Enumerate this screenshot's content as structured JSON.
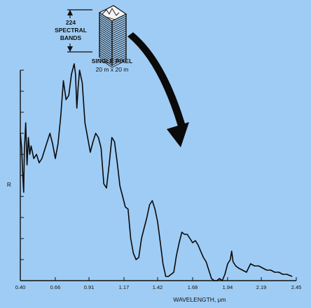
{
  "figure": {
    "bands_label_line1": "224",
    "bands_label_line2": "SPECTRAL",
    "bands_label_line3": "BANDS",
    "pixel_label_line1": "SINGLE PIXEL",
    "pixel_label_line2": "20 m x 20 m"
  },
  "colors": {
    "background": "#9fccf4",
    "ink": "#111111"
  },
  "chart_data": {
    "type": "line",
    "title": "",
    "xlabel": "WAVELENGTH, μm",
    "ylabel": "R",
    "xlim": [
      0.4,
      2.45
    ],
    "ylim": [
      0,
      1
    ],
    "x_ticks": [
      "0.40",
      "0.66",
      "0.91",
      "1.17",
      "1.42",
      "1.68",
      "1.94",
      "2.19",
      "2.45"
    ],
    "series": [
      {
        "x": [
          0.4,
          0.41,
          0.42,
          0.425,
          0.43,
          0.44,
          0.45,
          0.46,
          0.47,
          0.48,
          0.5,
          0.52,
          0.54,
          0.56,
          0.58,
          0.6,
          0.62,
          0.64,
          0.66,
          0.68,
          0.7,
          0.72,
          0.74,
          0.76,
          0.78,
          0.8,
          0.81,
          0.82,
          0.83,
          0.84,
          0.86,
          0.88,
          0.9,
          0.92,
          0.94,
          0.96,
          0.98,
          1.0,
          1.02,
          1.04,
          1.06,
          1.08,
          1.1,
          1.12,
          1.14,
          1.16,
          1.18,
          1.2,
          1.22,
          1.24,
          1.26,
          1.28,
          1.3,
          1.32,
          1.34,
          1.36,
          1.38,
          1.4,
          1.42,
          1.44,
          1.46,
          1.48,
          1.5,
          1.52,
          1.54,
          1.56,
          1.58,
          1.6,
          1.62,
          1.64,
          1.66,
          1.68,
          1.7,
          1.72,
          1.74,
          1.76,
          1.78,
          1.8,
          1.82,
          1.84,
          1.86,
          1.88,
          1.9,
          1.92,
          1.94,
          1.96,
          1.97,
          1.98,
          2.0,
          2.02,
          2.05,
          2.08,
          2.11,
          2.14,
          2.17,
          2.2,
          2.23,
          2.26,
          2.29,
          2.32,
          2.35,
          2.38,
          2.42
        ],
        "y": [
          0.7,
          0.63,
          0.48,
          0.42,
          0.62,
          0.75,
          0.55,
          0.68,
          0.6,
          0.64,
          0.58,
          0.6,
          0.56,
          0.58,
          0.62,
          0.66,
          0.7,
          0.65,
          0.58,
          0.65,
          0.78,
          0.95,
          0.86,
          0.88,
          0.98,
          1.03,
          0.98,
          0.82,
          0.92,
          1.0,
          0.94,
          0.75,
          0.68,
          0.61,
          0.66,
          0.7,
          0.68,
          0.63,
          0.46,
          0.44,
          0.55,
          0.68,
          0.66,
          0.56,
          0.45,
          0.4,
          0.35,
          0.34,
          0.2,
          0.13,
          0.1,
          0.11,
          0.2,
          0.25,
          0.3,
          0.36,
          0.38,
          0.34,
          0.28,
          0.18,
          0.08,
          0.02,
          0.02,
          0.03,
          0.04,
          0.12,
          0.18,
          0.23,
          0.22,
          0.22,
          0.2,
          0.18,
          0.19,
          0.17,
          0.14,
          0.11,
          0.09,
          0.05,
          0.01,
          0.0,
          0.0,
          0.01,
          0.0,
          0.03,
          0.08,
          0.1,
          0.14,
          0.09,
          0.07,
          0.06,
          0.05,
          0.04,
          0.08,
          0.07,
          0.07,
          0.06,
          0.05,
          0.05,
          0.04,
          0.04,
          0.03,
          0.03,
          0.02
        ]
      }
    ]
  }
}
